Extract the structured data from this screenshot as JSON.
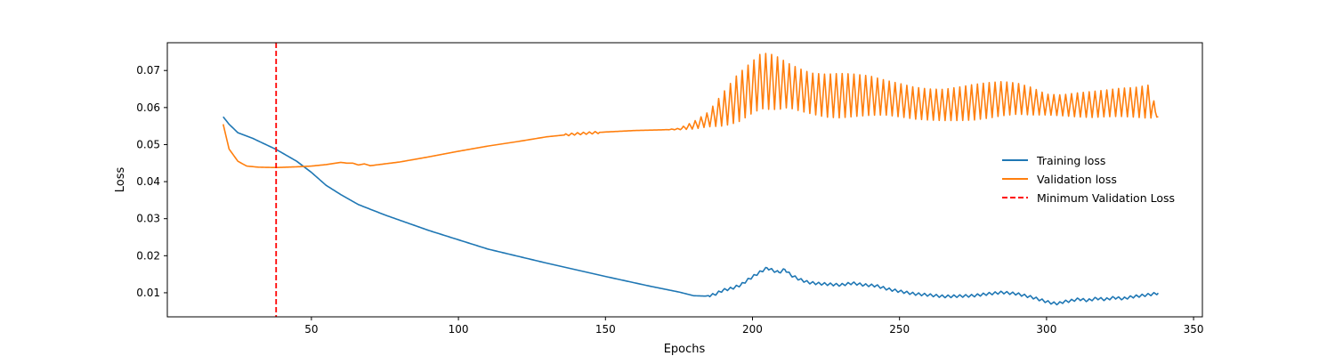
{
  "chart_data": {
    "type": "line",
    "title": "",
    "xlabel": "Epochs",
    "ylabel": "Loss",
    "xlim": [
      1,
      353
    ],
    "ylim": [
      0.0035,
      0.0775
    ],
    "xticks": [
      50,
      100,
      150,
      200,
      250,
      300,
      350
    ],
    "xtick_labels": [
      "50",
      "100",
      "150",
      "200",
      "250",
      "300",
      "350"
    ],
    "yticks": [
      0.01,
      0.02,
      0.03,
      0.04,
      0.05,
      0.06,
      0.07
    ],
    "ytick_labels": [
      "0.01",
      "0.02",
      "0.03",
      "0.04",
      "0.05",
      "0.06",
      "0.07"
    ],
    "grid": false,
    "legend": {
      "placement": "center-right",
      "frame": false
    },
    "series": [
      {
        "name": "Training loss",
        "color": "#1f77b4",
        "style": "solid",
        "x": [
          20,
          22,
          25,
          30,
          38,
          45,
          50,
          55,
          60,
          66,
          75,
          90,
          110,
          130,
          150,
          165,
          175,
          180,
          184,
          187,
          190,
          193,
          196,
          199,
          201,
          203,
          205,
          207,
          209,
          211,
          213,
          216,
          219,
          222,
          226,
          230,
          234,
          238,
          242,
          246,
          250,
          255,
          260,
          265,
          270,
          275,
          280,
          285,
          290,
          295,
          300,
          302,
          304,
          306,
          308,
          311,
          314,
          317,
          320,
          323,
          326,
          329,
          332,
          335,
          338
        ],
        "y": [
          0.0575,
          0.0555,
          0.0532,
          0.0517,
          0.0487,
          0.0455,
          0.0425,
          0.039,
          0.0365,
          0.0338,
          0.031,
          0.0268,
          0.0218,
          0.018,
          0.0144,
          0.0118,
          0.0102,
          0.0092,
          0.0091,
          0.0095,
          0.0107,
          0.0112,
          0.0121,
          0.0138,
          0.0148,
          0.0158,
          0.0167,
          0.016,
          0.0155,
          0.0163,
          0.0148,
          0.0136,
          0.0128,
          0.0125,
          0.0123,
          0.0121,
          0.0126,
          0.0121,
          0.0119,
          0.011,
          0.0104,
          0.0097,
          0.0094,
          0.009,
          0.0091,
          0.0092,
          0.0097,
          0.0101,
          0.0097,
          0.0088,
          0.0076,
          0.0072,
          0.0071,
          0.0076,
          0.0078,
          0.0083,
          0.0079,
          0.0085,
          0.0082,
          0.0087,
          0.0084,
          0.0089,
          0.0092,
          0.0095,
          0.0099
        ]
      },
      {
        "name": "Validation loss",
        "color": "#ff7f0e",
        "style": "solid",
        "x": [
          20,
          22,
          25,
          28,
          32,
          38,
          45,
          50,
          55,
          60,
          62,
          64,
          66,
          68,
          70,
          80,
          90,
          100,
          110,
          120,
          130,
          140,
          150,
          160,
          170,
          175,
          180,
          185,
          190,
          195,
          200,
          203,
          206,
          209,
          212,
          216,
          220,
          225,
          230,
          235,
          240,
          245,
          250,
          255,
          260,
          265,
          270,
          275,
          280,
          285,
          290,
          295,
          300,
          305,
          310,
          315,
          320,
          325,
          330,
          335,
          338
        ],
        "y": [
          0.0555,
          0.0488,
          0.0455,
          0.0442,
          0.0439,
          0.0438,
          0.044,
          0.0442,
          0.0446,
          0.0452,
          0.045,
          0.045,
          0.0445,
          0.0448,
          0.0443,
          0.0453,
          0.0467,
          0.0482,
          0.0496,
          0.0508,
          0.0521,
          0.0529,
          0.0534,
          0.0538,
          0.054,
          0.0542,
          0.0552,
          0.0568,
          0.0595,
          0.0625,
          0.0655,
          0.0672,
          0.067,
          0.0665,
          0.066,
          0.0648,
          0.0638,
          0.0632,
          0.0632,
          0.0633,
          0.0632,
          0.0627,
          0.062,
          0.0612,
          0.0608,
          0.0607,
          0.061,
          0.0614,
          0.0619,
          0.0624,
          0.0624,
          0.0617,
          0.0608,
          0.0606,
          0.0607,
          0.0608,
          0.0611,
          0.0614,
          0.0614,
          0.0616,
          0.0575
        ],
        "oscillation_amplitude": [
          0,
          0,
          0,
          0,
          0,
          0,
          0,
          0,
          0,
          0,
          0,
          0,
          0,
          0,
          0,
          0,
          0,
          0,
          0,
          0,
          0,
          0,
          0,
          0,
          0,
          0.0002,
          0.001,
          0.002,
          0.0045,
          0.0065,
          0.007,
          0.0075,
          0.0075,
          0.007,
          0.006,
          0.0057,
          0.0055,
          0.0058,
          0.006,
          0.0057,
          0.0053,
          0.0047,
          0.0045,
          0.0043,
          0.0042,
          0.0042,
          0.0045,
          0.0048,
          0.0048,
          0.0046,
          0.0042,
          0.0037,
          0.0028,
          0.0028,
          0.0032,
          0.0035,
          0.0036,
          0.0038,
          0.004,
          0.0045,
          0
        ]
      },
      {
        "name": "Minimum Validation Loss",
        "color": "#ff0000",
        "style": "dashed",
        "type": "vline",
        "x_value": 38
      }
    ]
  }
}
